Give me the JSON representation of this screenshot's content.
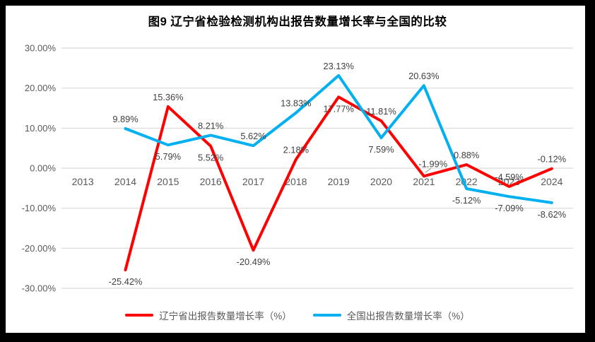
{
  "window": {
    "frame_color": "#000000",
    "canvas_color": "#FFFFFF"
  },
  "chart_data": {
    "type": "line",
    "title": "图9  辽宁省检验检测机构出报告数量增长率与全国的比较",
    "categories": [
      "2013",
      "2014",
      "2015",
      "2016",
      "2017",
      "2018",
      "2019",
      "2020",
      "2021",
      "2022",
      "2023",
      "2024"
    ],
    "series": [
      {
        "name": "辽宁省出报告数量增长率（%）",
        "color": "#FF0000",
        "values": [
          null,
          -25.42,
          15.36,
          5.52,
          -20.49,
          2.18,
          17.77,
          11.81,
          -1.99,
          0.88,
          -4.59,
          -0.12
        ],
        "labels": [
          null,
          "-25.42%",
          "15.36%",
          "5.52%",
          "-20.49%",
          "2.18%",
          "17.77%",
          "11.81%",
          "-1.99%",
          "0.88%",
          "-4.59%",
          "-0.12%"
        ],
        "label_positions": [
          null,
          "below",
          "above",
          "below",
          "below",
          "above",
          "below",
          "above",
          "above-leader",
          "above",
          "above",
          "above"
        ]
      },
      {
        "name": "全国出报告数量增长率（%）",
        "color": "#00B0F0",
        "values": [
          null,
          9.89,
          5.79,
          8.21,
          5.62,
          13.83,
          23.13,
          7.59,
          20.63,
          -5.12,
          -7.09,
          -8.62
        ],
        "labels": [
          null,
          "9.89%",
          "5.79%",
          "8.21%",
          "5.62%",
          "13.83%",
          "23.13%",
          "7.59%",
          "20.63%",
          "-5.12%",
          "-7.09%",
          "-8.62%"
        ],
        "label_positions": [
          null,
          "above",
          "below",
          "above",
          "above",
          "above",
          "above",
          "below",
          "above",
          "below",
          "below",
          "below"
        ]
      }
    ],
    "ylim": [
      -30,
      30
    ],
    "ytick_step": 10,
    "ytick_labels": [
      "30.00%",
      "20.00%",
      "10.00%",
      "0.00%",
      "-10.00%",
      "-20.00%",
      "-30.00%"
    ],
    "xlabel": "",
    "ylabel": "",
    "grid": true,
    "legend_position": "bottom",
    "colors": {
      "gridline": "#D9D9D9",
      "axis_text": "#595959",
      "data_label": "#404040",
      "leader_line": "#A6A6A6"
    }
  }
}
